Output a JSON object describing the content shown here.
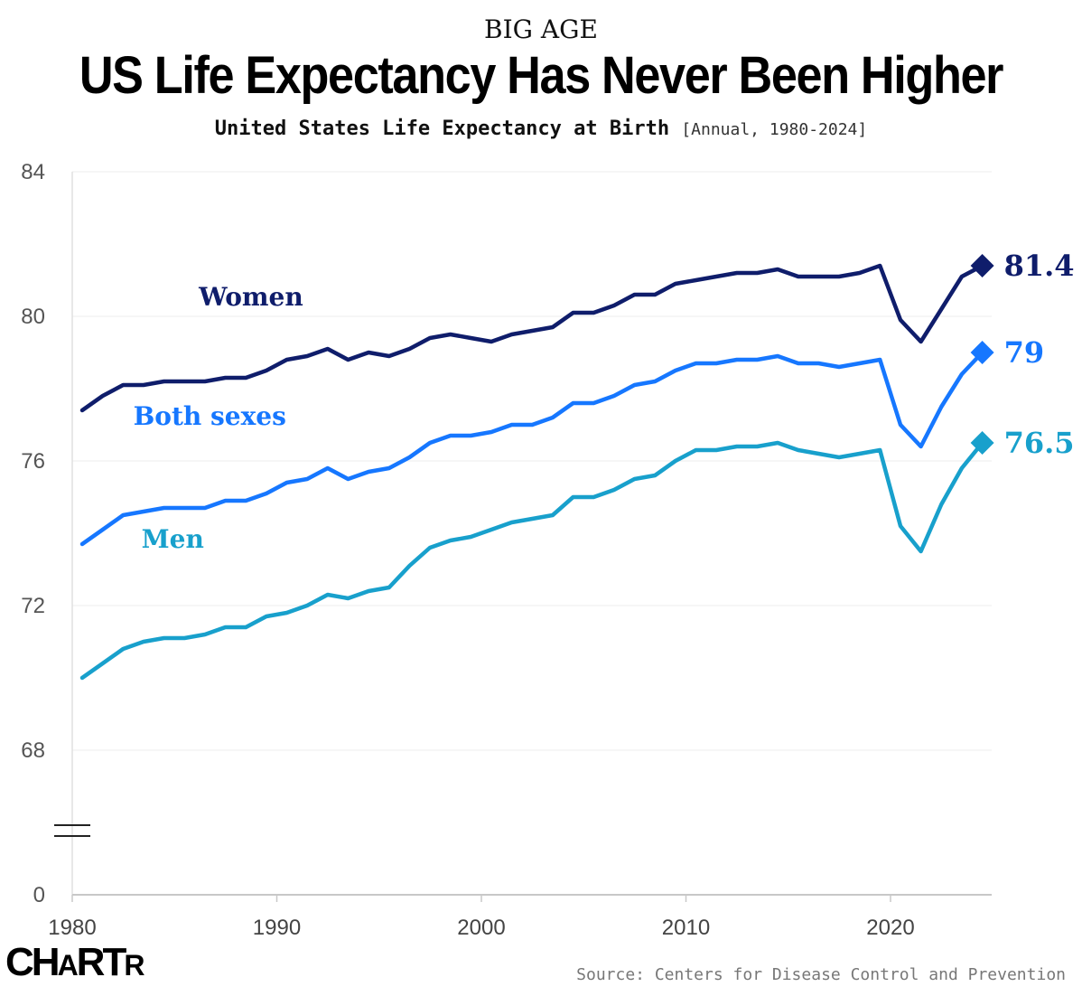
{
  "header": {
    "kicker": "BIG AGE",
    "title": "US Life Expectancy Has Never Been Higher",
    "subtitle": "United States Life Expectancy at Birth",
    "subtitle_range": "[Annual, 1980-2024]"
  },
  "footer": {
    "logo": "CHARTR",
    "source": "Source: Centers for Disease Control and Prevention"
  },
  "chart_data": {
    "type": "line",
    "title": "United States Life Expectancy at Birth",
    "xlabel": "",
    "ylabel": "",
    "xlim": [
      1980,
      2025
    ],
    "ylim": [
      66,
      84
    ],
    "y_axis_break": true,
    "y_ticks": [
      "84",
      "80",
      "76",
      "72",
      "68",
      "0"
    ],
    "x_ticks": [
      "1980",
      "1990",
      "2000",
      "2010",
      "2020"
    ],
    "grid": true,
    "x": [
      1980,
      1981,
      1982,
      1983,
      1984,
      1985,
      1986,
      1987,
      1988,
      1989,
      1990,
      1991,
      1992,
      1993,
      1994,
      1995,
      1996,
      1997,
      1998,
      1999,
      2000,
      2001,
      2002,
      2003,
      2004,
      2005,
      2006,
      2007,
      2008,
      2009,
      2010,
      2011,
      2012,
      2013,
      2014,
      2015,
      2016,
      2017,
      2018,
      2019,
      2020,
      2021,
      2022,
      2023,
      2024
    ],
    "series": [
      {
        "name": "Women",
        "color": "#0f1d6b",
        "end_label": "81.4",
        "values": [
          77.4,
          77.8,
          78.1,
          78.1,
          78.2,
          78.2,
          78.2,
          78.3,
          78.3,
          78.5,
          78.8,
          78.9,
          79.1,
          78.8,
          79.0,
          78.9,
          79.1,
          79.4,
          79.5,
          79.4,
          79.3,
          79.5,
          79.6,
          79.7,
          80.1,
          80.1,
          80.3,
          80.6,
          80.6,
          80.9,
          81.0,
          81.1,
          81.2,
          81.2,
          81.3,
          81.1,
          81.1,
          81.1,
          81.2,
          81.4,
          79.9,
          79.3,
          80.2,
          81.1,
          81.4
        ]
      },
      {
        "name": "Both sexes",
        "color": "#1677ff",
        "end_label": "79",
        "values": [
          73.7,
          74.1,
          74.5,
          74.6,
          74.7,
          74.7,
          74.7,
          74.9,
          74.9,
          75.1,
          75.4,
          75.5,
          75.8,
          75.5,
          75.7,
          75.8,
          76.1,
          76.5,
          76.7,
          76.7,
          76.8,
          77.0,
          77.0,
          77.2,
          77.6,
          77.6,
          77.8,
          78.1,
          78.2,
          78.5,
          78.7,
          78.7,
          78.8,
          78.8,
          78.9,
          78.7,
          78.7,
          78.6,
          78.7,
          78.8,
          77.0,
          76.4,
          77.5,
          78.4,
          79.0
        ]
      },
      {
        "name": "Men",
        "color": "#18a0cc",
        "end_label": "76.5",
        "values": [
          70.0,
          70.4,
          70.8,
          71.0,
          71.1,
          71.1,
          71.2,
          71.4,
          71.4,
          71.7,
          71.8,
          72.0,
          72.3,
          72.2,
          72.4,
          72.5,
          73.1,
          73.6,
          73.8,
          73.9,
          74.1,
          74.3,
          74.4,
          74.5,
          75.0,
          75.0,
          75.2,
          75.5,
          75.6,
          76.0,
          76.3,
          76.3,
          76.4,
          76.4,
          76.5,
          76.3,
          76.2,
          76.1,
          76.2,
          76.3,
          74.2,
          73.5,
          74.8,
          75.8,
          76.5
        ]
      }
    ],
    "series_labels": [
      {
        "series": "Women",
        "text": "Women",
        "x": 1985.7,
        "y": 80.3
      },
      {
        "series": "Both sexes",
        "text": "Both sexes",
        "x": 1982.5,
        "y": 77.0
      },
      {
        "series": "Men",
        "text": "Men",
        "x": 1982.9,
        "y": 73.6
      }
    ]
  }
}
